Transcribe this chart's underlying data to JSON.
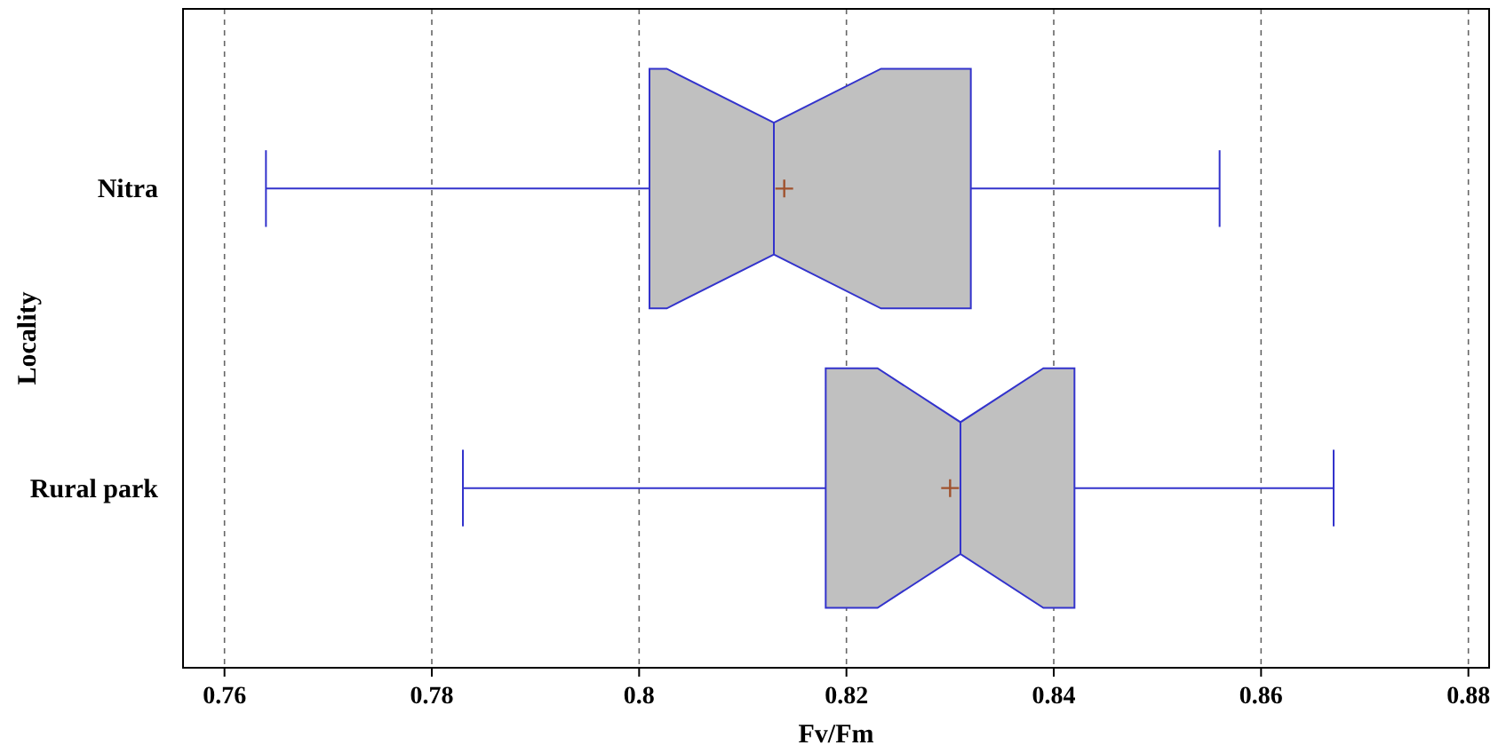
{
  "chart_data": {
    "type": "box",
    "orientation": "horizontal",
    "xlabel": "Fv/Fm",
    "ylabel": "Locality",
    "categories": [
      "Nitra",
      "Rural park"
    ],
    "boxes": [
      {
        "low": 0.764,
        "q1": 0.801,
        "median": 0.813,
        "q3": 0.832,
        "high": 0.856,
        "mean": 0.814
      },
      {
        "low": 0.783,
        "q1": 0.818,
        "median": 0.831,
        "q3": 0.842,
        "high": 0.867,
        "mean": 0.83
      }
    ],
    "color": "#c0c0c0",
    "xlim": [
      0.756,
      0.882
    ],
    "xticks": [
      0.76,
      0.78,
      0.8,
      0.82,
      0.84,
      0.86,
      0.88
    ],
    "grid": "x"
  }
}
